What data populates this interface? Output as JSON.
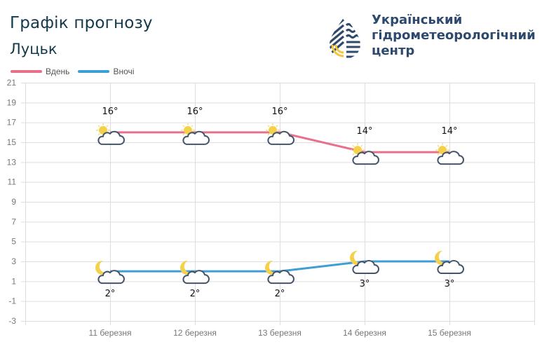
{
  "header": {
    "title": "Графік прогнозу",
    "city": "Луцьк"
  },
  "organization": {
    "logo_icon": "water-drop-logo-icon",
    "name_lines": [
      "Український",
      "гідрометеорологічний",
      "центр"
    ]
  },
  "legend": [
    {
      "label": "Вдень",
      "color": "#e8708a"
    },
    {
      "label": "Вночі",
      "color": "#3e9fd6"
    }
  ],
  "chart_data": {
    "type": "line",
    "title": "Графік прогнозу",
    "subtitle": "Луцьк",
    "categories": [
      "11 березня",
      "12 березня",
      "13 березня",
      "14 березня",
      "15 березня"
    ],
    "series": [
      {
        "name": "Вдень",
        "values": [
          16,
          16,
          16,
          14,
          14
        ],
        "color": "#e8708a",
        "labels": [
          "16°",
          "16°",
          "16°",
          "14°",
          "14°"
        ],
        "icon": "sun-behind-cloud-icon"
      },
      {
        "name": "Вночі",
        "values": [
          2,
          2,
          2,
          3,
          3
        ],
        "color": "#3e9fd6",
        "labels": [
          "2°",
          "2°",
          "2°",
          "3°",
          "3°"
        ],
        "icon": "moon-behind-cloud-icon"
      }
    ],
    "xlabel": "",
    "ylabel": "",
    "ylim": [
      -3,
      21
    ],
    "yticks": [
      21,
      19,
      17,
      15,
      13,
      11,
      9,
      7,
      5,
      3,
      1,
      -1,
      -3
    ],
    "grid": true,
    "legend_position": "top-left"
  }
}
